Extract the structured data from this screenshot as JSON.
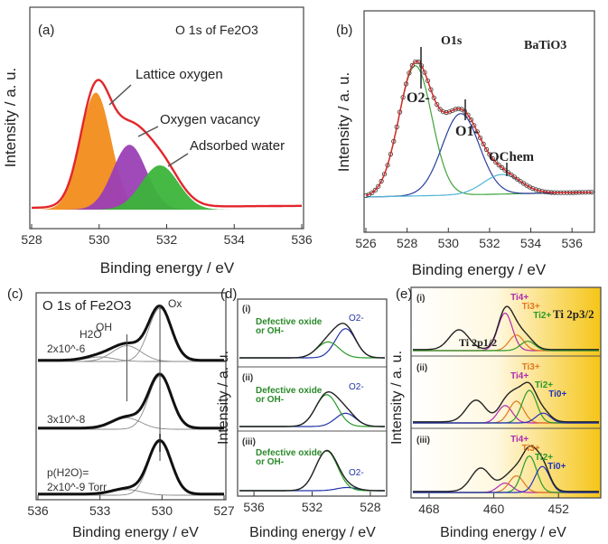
{
  "chart_data": [
    {
      "panel": "(a)",
      "type": "area",
      "title": "O 1s of Fe2O3",
      "xlabel": "Binding energy / eV",
      "ylabel": "Intensity / a. u.",
      "xlim": [
        528,
        536
      ],
      "x_reversed": false,
      "xticks": [
        "528",
        "530",
        "532",
        "534",
        "536"
      ],
      "annotations": [
        "Lattice oxygen",
        "Oxygen vacancy",
        "Adsorbed water"
      ],
      "series": [
        {
          "name": "Lattice oxygen",
          "color": "#f28c1a",
          "center": 529.9,
          "height": 0.74,
          "width": 0.45
        },
        {
          "name": "Oxygen vacancy",
          "color": "#9b3fb5",
          "center": 530.9,
          "height": 0.41,
          "width": 0.5
        },
        {
          "name": "Adsorbed water",
          "color": "#3cb43a",
          "center": 531.8,
          "height": 0.28,
          "width": 0.55
        }
      ],
      "envelope_color": "#e3262b"
    },
    {
      "panel": "(b)",
      "type": "line",
      "title": "O1s",
      "sample": "BaTiO3",
      "xlabel": "Binding energy / eV",
      "ylabel": "Intensity / a. u.",
      "xlim": [
        526,
        537
      ],
      "x_reversed": false,
      "xticks": [
        "526",
        "528",
        "530",
        "532",
        "534",
        "536"
      ],
      "annotations": [
        "O2-",
        "O1-",
        "OChem"
      ],
      "series": [
        {
          "name": "O2-",
          "color": "#3fa33a",
          "center": 528.4,
          "height": 0.8,
          "width": 0.8
        },
        {
          "name": "O1-",
          "color": "#2c3f9c",
          "center": 530.6,
          "height": 0.5,
          "width": 0.9
        },
        {
          "name": "OChem",
          "color": "#4fb3d6",
          "center": 532.6,
          "height": 0.12,
          "width": 0.9
        }
      ],
      "envelope_color": "#d42a2a"
    },
    {
      "panel": "(c)",
      "type": "line",
      "title": "O 1s of Fe2O3",
      "xlabel": "Binding energy / eV",
      "ylabel": "Intensity / a. u.",
      "xlim": [
        536,
        527
      ],
      "x_reversed": true,
      "xticks": [
        "536",
        "533",
        "530",
        "527"
      ],
      "peak_labels": [
        "H2O",
        "OH",
        "Ox"
      ],
      "pressure_label": "p(H2O)=",
      "spectra": [
        {
          "label": "2x10^-6",
          "ox_center": 530.1,
          "ox_height": 0.95,
          "oh_center": 531.7,
          "oh_height": 0.28,
          "h2o_center": 533.0,
          "h2o_height": 0.08
        },
        {
          "label": "3x10^-8",
          "ox_center": 530.1,
          "ox_height": 0.95,
          "oh_center": 531.7,
          "oh_height": 0.2,
          "h2o_center": 533.0,
          "h2o_height": 0.0
        },
        {
          "label": "2x10^-9 Torr",
          "ox_center": 530.1,
          "ox_height": 0.95,
          "oh_center": 531.7,
          "oh_height": 0.1,
          "h2o_center": 533.0,
          "h2o_height": 0.0
        }
      ]
    },
    {
      "panel": "(d)",
      "type": "line",
      "xlabel": "Binding energy / eV",
      "ylabel": "Intensity / a. u.",
      "xlim": [
        537,
        527
      ],
      "x_reversed": true,
      "xticks": [
        "536",
        "532",
        "528"
      ],
      "subpanels": [
        {
          "label": "(i)",
          "annotations": [
            "Defective oxide",
            "or OH-",
            "O2-"
          ],
          "oxide_center": 529.7,
          "oxide_height": 0.55,
          "defect_center": 530.9,
          "defect_height": 0.3
        },
        {
          "label": "(ii)",
          "annotations": [
            "Defective oxide",
            "or OH-",
            "O2-"
          ],
          "oxide_center": 529.7,
          "oxide_height": 0.25,
          "defect_center": 531.0,
          "defect_height": 0.6
        },
        {
          "label": "(iii)",
          "annotations": [
            "Defective oxide",
            "or OH-",
            "O2-"
          ],
          "oxide_center": 529.6,
          "oxide_height": 0.06,
          "defect_center": 531.0,
          "defect_height": 0.75
        }
      ],
      "colors": {
        "oxide": "#2233aa",
        "defect": "#2a9a2a",
        "total": "#222222"
      }
    },
    {
      "panel": "(e)",
      "type": "line",
      "title": "Ti 2p3/2",
      "xlabel": "Binding energy / eV",
      "ylabel": "Intensity / a. u.",
      "xlim": [
        470,
        447
      ],
      "x_reversed": true,
      "xticks": [
        "468",
        "460",
        "452"
      ],
      "peak_label_left": "Ti 2p1/2",
      "component_colors": {
        "Ti4+": "#b02ab0",
        "Ti3+": "#e0781e",
        "Ti2+": "#2a9a2a",
        "Ti0+": "#2233bb",
        "total": "#222222"
      },
      "subpanels": [
        {
          "label": "(i)",
          "labels": [
            "Ti4+",
            "Ti3+",
            "Ti2+"
          ],
          "components": [
            {
              "ion": "Ti4+",
              "center": 458.6,
              "height": 0.72
            },
            {
              "ion": "Ti3+",
              "center": 457.2,
              "height": 0.3
            },
            {
              "ion": "Ti2+",
              "center": 455.8,
              "height": 0.18
            }
          ],
          "p12": {
            "center": 464.3,
            "height": 0.38
          }
        },
        {
          "label": "(ii)",
          "labels": [
            "Ti3+",
            "Ti4+",
            "Ti2+",
            "Ti0+"
          ],
          "components": [
            {
              "ion": "Ti4+",
              "center": 458.6,
              "height": 0.32
            },
            {
              "ion": "Ti3+",
              "center": 457.2,
              "height": 0.4
            },
            {
              "ion": "Ti2+",
              "center": 455.6,
              "height": 0.6
            },
            {
              "ion": "Ti0+",
              "center": 453.9,
              "height": 0.18
            }
          ],
          "p12": {
            "center": 462.2,
            "height": 0.4
          }
        },
        {
          "label": "(iii)",
          "labels": [
            "Ti4+",
            "Ti3+",
            "Ti2+",
            "Ti0+"
          ],
          "components": [
            {
              "ion": "Ti4+",
              "center": 458.6,
              "height": 0.18
            },
            {
              "ion": "Ti3+",
              "center": 457.2,
              "height": 0.32
            },
            {
              "ion": "Ti2+",
              "center": 455.6,
              "height": 0.7
            },
            {
              "ion": "Ti0+",
              "center": 454.0,
              "height": 0.5
            }
          ],
          "p12": {
            "center": 461.6,
            "height": 0.45
          }
        }
      ],
      "background_gradient": [
        "#ffffff",
        "#f5c518"
      ]
    }
  ]
}
